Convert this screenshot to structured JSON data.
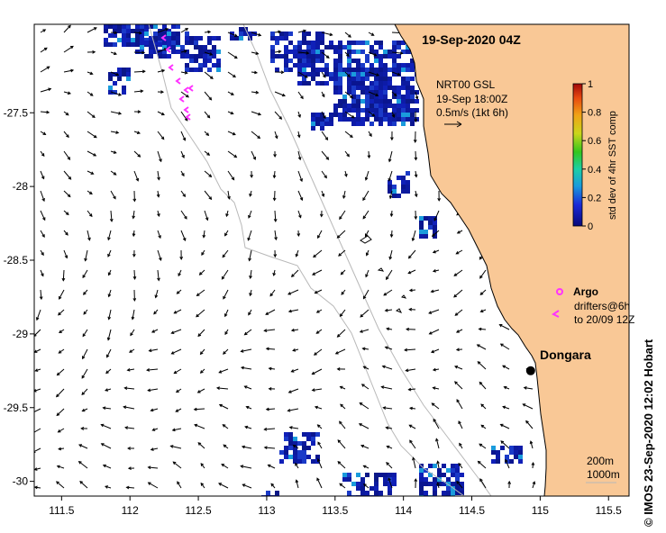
{
  "title": "19-Sep-2020 04Z",
  "current_label": {
    "line1": "NRT00 GSL",
    "line2": "19-Sep 18:00Z",
    "line3": "0.5m/s (1kt 6h)"
  },
  "colorbar": {
    "label": "std dev of 4hr SST comp",
    "ticks": [
      "0",
      "0.2",
      "0.4",
      "0.6",
      "0.8",
      "1"
    ]
  },
  "legend": {
    "argo": "Argo",
    "drifters_line1": "drifters@6h",
    "drifters_line2": "to 20/09 12Z"
  },
  "place": {
    "name": "Dongara",
    "lon": 114.93,
    "lat": -29.25
  },
  "scale": {
    "line1": "200m",
    "line2": "1000m"
  },
  "credit": "© IMOS 23-Sep-2020 12:02 Hobart",
  "axes": {
    "x_ticks": [
      "111.5",
      "112",
      "112.5",
      "113",
      "113.5",
      "114",
      "114.5",
      "115",
      "115.5"
    ],
    "y_ticks": [
      "-27.5",
      "-28",
      "-28.5",
      "-29",
      "-29.5",
      "-30"
    ],
    "x_range": [
      111.3,
      115.65
    ],
    "y_range": [
      -30.1,
      -26.9
    ]
  },
  "colors": {
    "land": "#f9c896",
    "sst_patch": "#0c1a9e",
    "argo_drifters": "#ff33ff",
    "isobath": "#b8b8b8"
  }
}
